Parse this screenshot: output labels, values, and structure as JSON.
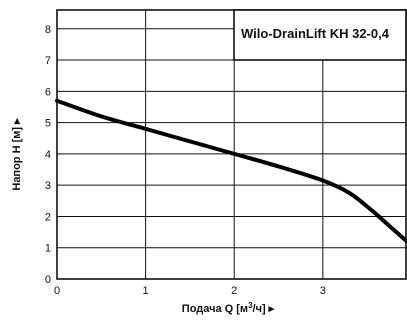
{
  "chart_data": {
    "type": "line",
    "title": "Wilo-DrainLift KH 32-0,4",
    "xlabel_main": "Подача Q [м",
    "xlabel_sup": "3",
    "xlabel_tail": "/ч] ▸",
    "ylabel": "Напор H [м] ▸",
    "xlim": [
      0,
      3.95
    ],
    "ylim": [
      0,
      8.6
    ],
    "x_ticks": [
      0,
      1,
      2,
      3
    ],
    "y_ticks": [
      0,
      1,
      2,
      3,
      4,
      5,
      6,
      7,
      8
    ],
    "grid": true,
    "series": [
      {
        "x": [
          0,
          0.5,
          1,
          1.5,
          2,
          2.5,
          3,
          3.3,
          3.55,
          3.75,
          3.95
        ],
        "y": [
          5.7,
          5.2,
          4.8,
          4.4,
          4.0,
          3.6,
          3.15,
          2.75,
          2.2,
          1.7,
          1.2
        ]
      }
    ]
  }
}
